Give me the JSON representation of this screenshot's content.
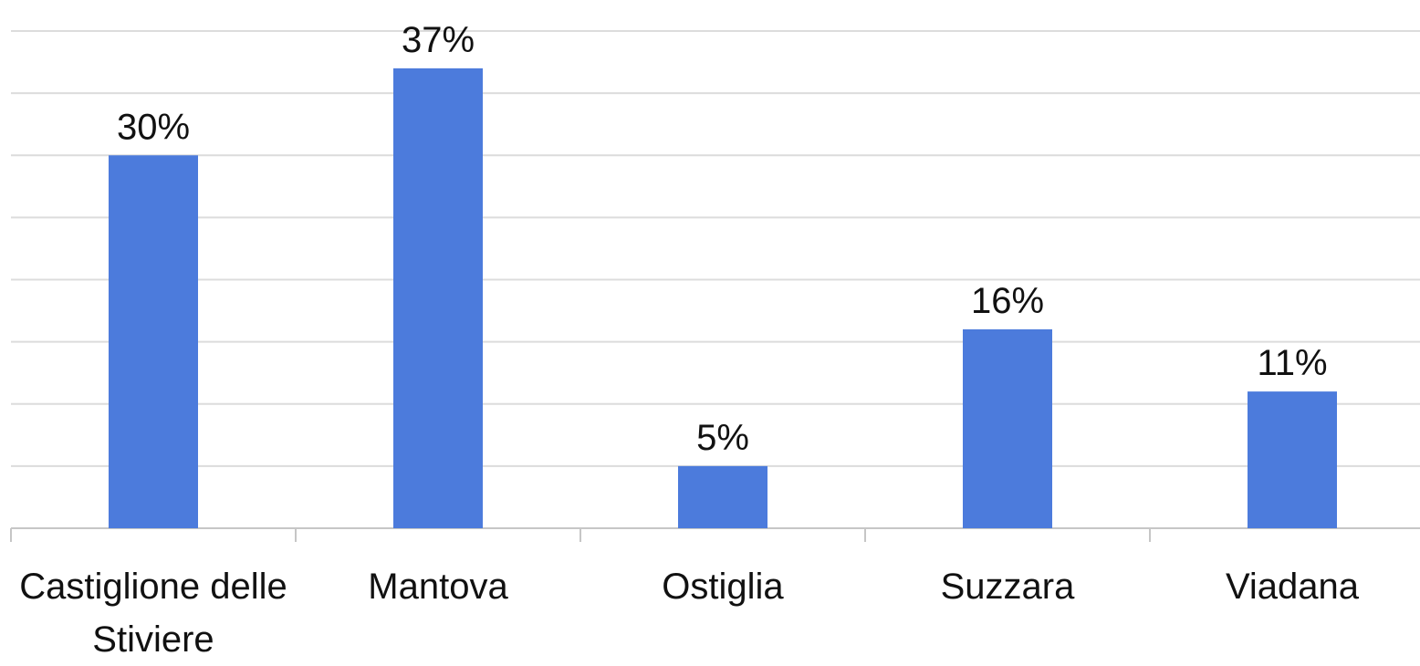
{
  "chart_data": {
    "type": "bar",
    "categories": [
      "Castiglione delle Stiviere",
      "Mantova",
      "Ostiglia",
      "Suzzara",
      "Viadana"
    ],
    "values": [
      30,
      37,
      5,
      16,
      11
    ],
    "value_labels": [
      "30%",
      "37%",
      "5%",
      "16%",
      "11%"
    ],
    "color": "#4c7bdc",
    "ylim": [
      0,
      40
    ],
    "yticks": [
      0,
      5,
      10,
      15,
      20,
      25,
      30,
      35,
      40
    ],
    "grid": true
  }
}
